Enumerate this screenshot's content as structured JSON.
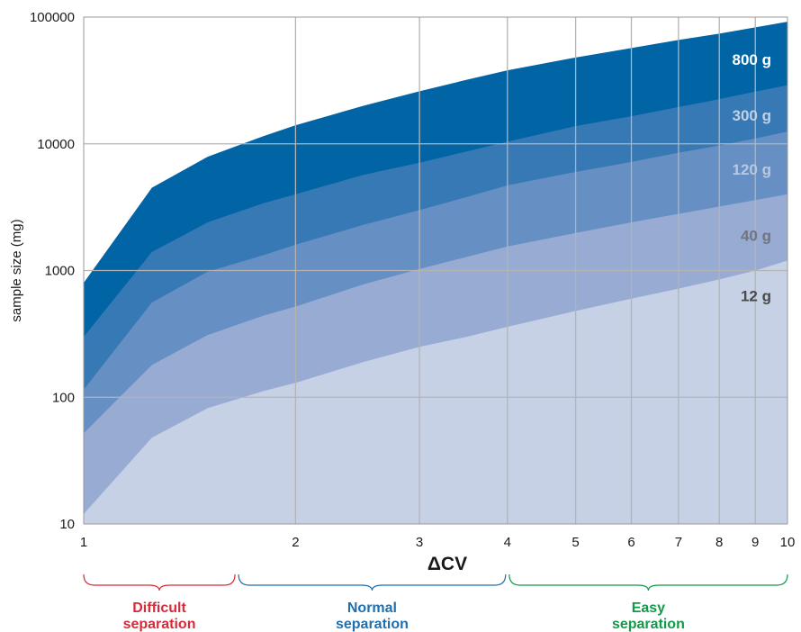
{
  "chart_data": {
    "type": "area",
    "title": "",
    "xlabel": "ΔCV",
    "ylabel": "sample size (mg)",
    "xscale": "log",
    "yscale": "log",
    "xlim": [
      1,
      10
    ],
    "ylim": [
      10,
      100000
    ],
    "grid": true,
    "x_ticks": [
      1,
      2,
      3,
      4,
      5,
      6,
      7,
      8,
      9,
      10
    ],
    "y_ticks": [
      10,
      100,
      1000,
      10000,
      100000
    ],
    "x": [
      1,
      1.25,
      1.5,
      1.8,
      2,
      2.5,
      3,
      3.5,
      4,
      5,
      6,
      7,
      8,
      9,
      10
    ],
    "series": [
      {
        "name": "800 g",
        "color": "#0064a5",
        "label_color": "#ffffff",
        "values": [
          800,
          4500,
          7900,
          11500,
          14000,
          20000,
          26000,
          32000,
          38000,
          48000,
          57000,
          66000,
          74000,
          83000,
          92000
        ]
      },
      {
        "name": "300 g",
        "color": "#3779b5",
        "label_color": "#c3d0e3",
        "values": [
          300,
          1400,
          2400,
          3400,
          4000,
          5700,
          7100,
          8700,
          10400,
          13800,
          16500,
          19500,
          22500,
          25800,
          29000
        ]
      },
      {
        "name": "120 g",
        "color": "#668fc3",
        "label_color": "#bac8de",
        "values": [
          115,
          560,
          980,
          1320,
          1600,
          2300,
          3000,
          3800,
          4700,
          6000,
          7200,
          8500,
          9700,
          11000,
          12500
        ]
      },
      {
        "name": "40 g",
        "color": "#97abd3",
        "label_color": "#707580",
        "values": [
          52,
          180,
          310,
          440,
          520,
          780,
          1030,
          1280,
          1550,
          1980,
          2400,
          2800,
          3200,
          3600,
          4000
        ]
      },
      {
        "name": "12 g",
        "color": "#c6d1e6",
        "label_color": "#4a4a4a",
        "values": [
          12,
          48,
          82,
          112,
          130,
          190,
          250,
          300,
          360,
          480,
          600,
          720,
          850,
          1000,
          1200
        ]
      }
    ],
    "ranges": [
      {
        "label": "Difficult separation",
        "line1": "Difficult",
        "line2": "separation",
        "x_start": 1,
        "x_end": 1.65,
        "color": "#d62b3a"
      },
      {
        "label": "Normal separation",
        "line1": "Normal",
        "line2": "separation",
        "x_start": 1.65,
        "x_end": 4,
        "color": "#1e6fb0"
      },
      {
        "label": "Easy separation",
        "line1": "Easy",
        "line2": "separation",
        "x_start": 4,
        "x_end": 10,
        "color": "#129a48"
      }
    ]
  }
}
